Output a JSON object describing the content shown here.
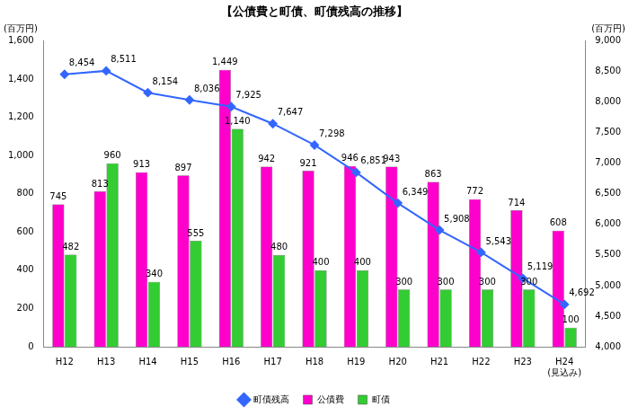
{
  "chart_data": {
    "type": "bar",
    "title": "【公債費と町債、町債残高の推移】",
    "ylabel": "(百万円)",
    "y2label": "(百万円)",
    "categories": [
      "H12",
      "H13",
      "H14",
      "H15",
      "H16",
      "H17",
      "H18",
      "H19",
      "H20",
      "H21",
      "H22",
      "H23",
      [
        "H24",
        "(見込み)"
      ]
    ],
    "series": [
      {
        "name": "公債費",
        "type": "bar",
        "color": "#ff00cc",
        "values": [
          745,
          813,
          913,
          897,
          1449,
          942,
          921,
          946,
          943,
          863,
          772,
          714,
          608
        ],
        "value_labels": [
          "745",
          "813",
          "913",
          "897",
          "1,449",
          "942",
          "921",
          "946",
          "943",
          "863",
          "772",
          "714",
          "608"
        ]
      },
      {
        "name": "町債",
        "type": "bar",
        "color": "#33cc33",
        "values": [
          482,
          960,
          340,
          555,
          1140,
          480,
          400,
          400,
          300,
          300,
          300,
          300,
          100
        ],
        "value_labels": [
          "482",
          "960",
          "340",
          "555",
          "1,140",
          "480",
          "400",
          "400",
          "300",
          "300",
          "300",
          "300",
          "100"
        ]
      },
      {
        "name": "町債残高",
        "type": "line",
        "axis": "y2",
        "color": "#3366ff",
        "marker": "diamond",
        "values": [
          8454,
          8511,
          8154,
          8036,
          7925,
          7647,
          7298,
          6851,
          6349,
          5908,
          5543,
          5119,
          4692
        ],
        "value_labels": [
          "8,454",
          "8,511",
          "8,154",
          "8,036",
          "7,925",
          "7,647",
          "7,298",
          "6,851",
          "6,349",
          "5,908",
          "5,543",
          "5,119",
          "4,692"
        ]
      }
    ],
    "ylim": [
      0,
      1600
    ],
    "yticks": [
      0,
      200,
      400,
      600,
      800,
      {
        "value": 1000,
        "label": "1,000"
      },
      {
        "value": 1200,
        "label": "1,200"
      },
      {
        "value": 1400,
        "label": "1,400"
      },
      {
        "value": 1600,
        "label": "1,600"
      }
    ],
    "y2lim": [
      4000,
      9000
    ],
    "y2ticks": [
      {
        "value": 4000,
        "label": "4,000"
      },
      {
        "value": 4500,
        "label": "4,500"
      },
      {
        "value": 5000,
        "label": "5,000"
      },
      {
        "value": 5500,
        "label": "5,500"
      },
      {
        "value": 6000,
        "label": "6,000"
      },
      {
        "value": 6500,
        "label": "6,500"
      },
      {
        "value": 7000,
        "label": "7,000"
      },
      {
        "value": 7500,
        "label": "7,500"
      },
      {
        "value": 8000,
        "label": "8,000"
      },
      {
        "value": 8500,
        "label": "8,500"
      },
      {
        "value": 9000,
        "label": "9,000"
      }
    ],
    "grid": false,
    "legend": "bottom",
    "data_labels": true
  }
}
